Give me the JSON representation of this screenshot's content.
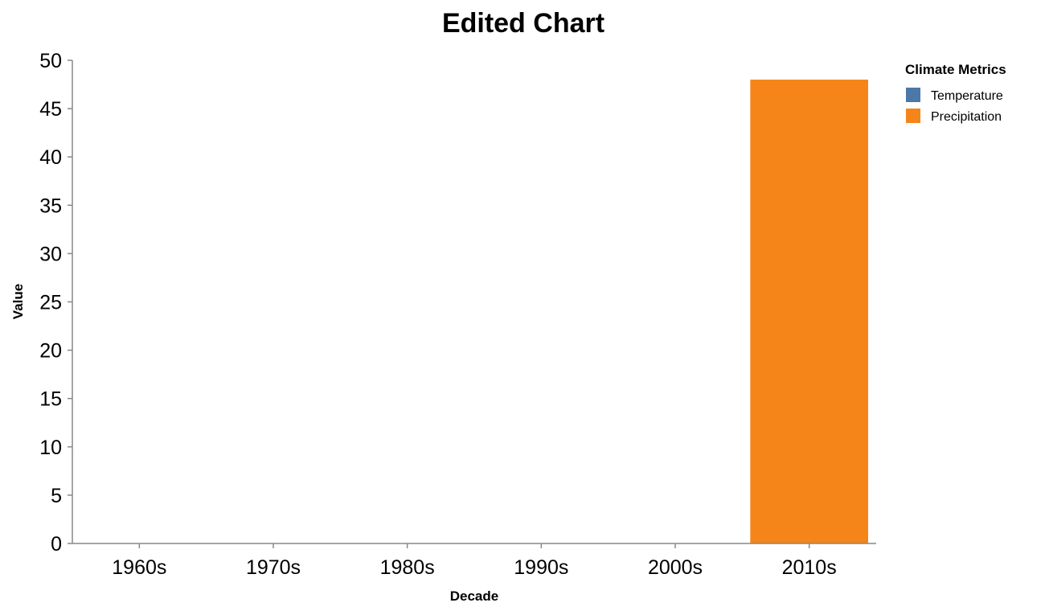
{
  "chart_data": {
    "type": "bar",
    "title": "Edited Chart",
    "xlabel": "Decade",
    "ylabel": "Value",
    "ylim": [
      0,
      50
    ],
    "yticks": [
      "0",
      "5",
      "10",
      "15",
      "20",
      "25",
      "30",
      "35",
      "40",
      "45",
      "50"
    ],
    "categories": [
      "1960s",
      "1970s",
      "1980s",
      "1990s",
      "2000s",
      "2010s"
    ],
    "series": [
      {
        "name": "Temperature",
        "color": "#4c78a8",
        "values": [
          0,
          0,
          0,
          0,
          0,
          0
        ]
      },
      {
        "name": "Precipitation",
        "color": "#f58518",
        "values": [
          0,
          0,
          0,
          0,
          0,
          48
        ]
      }
    ],
    "legend": {
      "title": "Climate Metrics",
      "position": "top-right"
    },
    "grid": false
  }
}
